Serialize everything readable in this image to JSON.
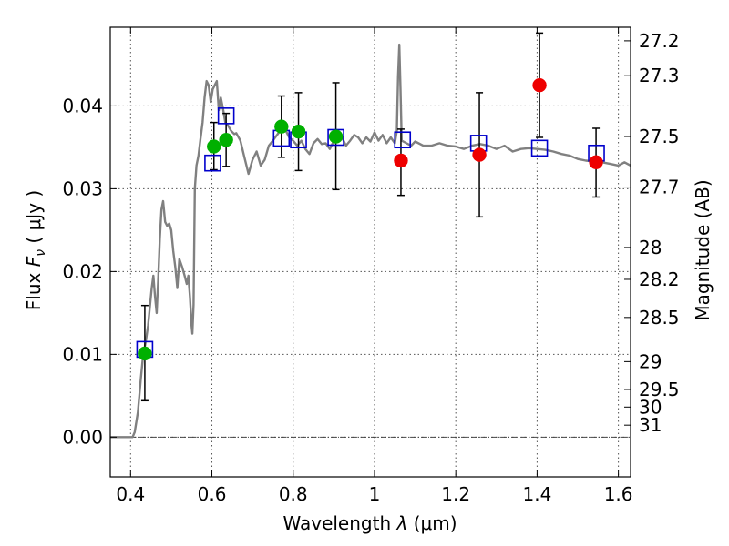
{
  "chart_data": {
    "type": "scatter",
    "xlabel_prefix": "Wavelength",
    "xlabel_symbol": "λ",
    "xlabel_unit": "(μm)",
    "ylabel_prefix": "Flux",
    "ylabel_symbol": "F",
    "ylabel_subscript": "ν",
    "ylabel_unit": "( μJy )",
    "ylabel_right": "Magnitude (AB)",
    "xlim": [
      0.35,
      1.63
    ],
    "ylim": [
      -0.0048,
      0.0495
    ],
    "grid": true,
    "x_ticks": [
      {
        "value": 0.4,
        "label": "0.4"
      },
      {
        "value": 0.6,
        "label": "0.6"
      },
      {
        "value": 0.8,
        "label": "0.8"
      },
      {
        "value": 1.0,
        "label": "1"
      },
      {
        "value": 1.2,
        "label": "1.2"
      },
      {
        "value": 1.4,
        "label": "1.4"
      },
      {
        "value": 1.6,
        "label": "1.6"
      }
    ],
    "y_ticks": [
      {
        "value": 0.0,
        "label": "0.00"
      },
      {
        "value": 0.01,
        "label": "0.01"
      },
      {
        "value": 0.02,
        "label": "0.02"
      },
      {
        "value": 0.03,
        "label": "0.03"
      },
      {
        "value": 0.04,
        "label": "0.04"
      }
    ],
    "magnitude_ticks": [
      {
        "mag": 27.2,
        "label": "27.2"
      },
      {
        "mag": 27.3,
        "label": "27.3"
      },
      {
        "mag": 27.5,
        "label": "27.5"
      },
      {
        "mag": 27.7,
        "label": "27.7"
      },
      {
        "mag": 28.0,
        "label": "28"
      },
      {
        "mag": 28.2,
        "label": "28.2"
      },
      {
        "mag": 28.5,
        "label": "28.5"
      },
      {
        "mag": 29.0,
        "label": "29"
      },
      {
        "mag": 29.5,
        "label": "29.5"
      },
      {
        "mag": 30.0,
        "label": "30"
      },
      {
        "mag": 31.0,
        "label": "31"
      }
    ],
    "colors": {
      "template": "#808080",
      "model": "#0000cc",
      "green": "#00b000",
      "red": "#ee0000",
      "errorbar": "#000000",
      "grid": "#555555"
    },
    "series": [
      {
        "kind": "line",
        "points": [
          [
            0.35,
            0.0
          ],
          [
            0.38,
            0.0
          ],
          [
            0.405,
            0.0
          ],
          [
            0.41,
            0.0006
          ],
          [
            0.418,
            0.003
          ],
          [
            0.425,
            0.007
          ],
          [
            0.43,
            0.0095
          ],
          [
            0.438,
            0.0118
          ],
          [
            0.443,
            0.0135
          ],
          [
            0.448,
            0.016
          ],
          [
            0.452,
            0.018
          ],
          [
            0.456,
            0.0195
          ],
          [
            0.46,
            0.017
          ],
          [
            0.464,
            0.015
          ],
          [
            0.468,
            0.019
          ],
          [
            0.472,
            0.024
          ],
          [
            0.476,
            0.0275
          ],
          [
            0.48,
            0.0285
          ],
          [
            0.485,
            0.026
          ],
          [
            0.49,
            0.0255
          ],
          [
            0.495,
            0.0258
          ],
          [
            0.5,
            0.025
          ],
          [
            0.505,
            0.0225
          ],
          [
            0.51,
            0.0205
          ],
          [
            0.515,
            0.018
          ],
          [
            0.52,
            0.0215
          ],
          [
            0.527,
            0.0205
          ],
          [
            0.533,
            0.0195
          ],
          [
            0.538,
            0.0185
          ],
          [
            0.542,
            0.0195
          ],
          [
            0.546,
            0.017
          ],
          [
            0.55,
            0.0135
          ],
          [
            0.552,
            0.0125
          ],
          [
            0.555,
            0.016
          ],
          [
            0.558,
            0.03
          ],
          [
            0.562,
            0.0328
          ],
          [
            0.567,
            0.034
          ],
          [
            0.572,
            0.036
          ],
          [
            0.577,
            0.038
          ],
          [
            0.582,
            0.041
          ],
          [
            0.587,
            0.043
          ],
          [
            0.592,
            0.0425
          ],
          [
            0.597,
            0.0405
          ],
          [
            0.602,
            0.042
          ],
          [
            0.607,
            0.0425
          ],
          [
            0.612,
            0.043
          ],
          [
            0.617,
            0.0395
          ],
          [
            0.622,
            0.041
          ],
          [
            0.628,
            0.0395
          ],
          [
            0.633,
            0.038
          ],
          [
            0.64,
            0.0376
          ],
          [
            0.647,
            0.037
          ],
          [
            0.655,
            0.0366
          ],
          [
            0.66,
            0.0367
          ],
          [
            0.67,
            0.0358
          ],
          [
            0.68,
            0.0338
          ],
          [
            0.69,
            0.0318
          ],
          [
            0.7,
            0.0335
          ],
          [
            0.71,
            0.0345
          ],
          [
            0.72,
            0.0328
          ],
          [
            0.73,
            0.0335
          ],
          [
            0.74,
            0.0352
          ],
          [
            0.75,
            0.0358
          ],
          [
            0.765,
            0.0368
          ],
          [
            0.78,
            0.0372
          ],
          [
            0.79,
            0.0362
          ],
          [
            0.8,
            0.0358
          ],
          [
            0.81,
            0.0352
          ],
          [
            0.82,
            0.0358
          ],
          [
            0.83,
            0.0348
          ],
          [
            0.84,
            0.0342
          ],
          [
            0.85,
            0.0355
          ],
          [
            0.86,
            0.036
          ],
          [
            0.87,
            0.0354
          ],
          [
            0.88,
            0.0355
          ],
          [
            0.89,
            0.0348
          ],
          [
            0.9,
            0.0358
          ],
          [
            0.91,
            0.0366
          ],
          [
            0.92,
            0.0362
          ],
          [
            0.93,
            0.0352
          ],
          [
            0.94,
            0.0358
          ],
          [
            0.95,
            0.0365
          ],
          [
            0.96,
            0.0362
          ],
          [
            0.97,
            0.0355
          ],
          [
            0.98,
            0.0362
          ],
          [
            0.99,
            0.0357
          ],
          [
            1.0,
            0.0368
          ],
          [
            1.01,
            0.0358
          ],
          [
            1.02,
            0.0365
          ],
          [
            1.03,
            0.0355
          ],
          [
            1.04,
            0.0362
          ],
          [
            1.05,
            0.0355
          ],
          [
            1.055,
            0.037
          ],
          [
            1.058,
            0.0435
          ],
          [
            1.061,
            0.0474
          ],
          [
            1.064,
            0.042
          ],
          [
            1.067,
            0.0358
          ],
          [
            1.075,
            0.0356
          ],
          [
            1.09,
            0.0352
          ],
          [
            1.1,
            0.0357
          ],
          [
            1.12,
            0.0352
          ],
          [
            1.14,
            0.0352
          ],
          [
            1.16,
            0.0355
          ],
          [
            1.18,
            0.0352
          ],
          [
            1.2,
            0.0351
          ],
          [
            1.22,
            0.0348
          ],
          [
            1.24,
            0.0352
          ],
          [
            1.26,
            0.0354
          ],
          [
            1.28,
            0.0352
          ],
          [
            1.3,
            0.0348
          ],
          [
            1.32,
            0.0352
          ],
          [
            1.34,
            0.0345
          ],
          [
            1.36,
            0.0348
          ],
          [
            1.38,
            0.0349
          ],
          [
            1.4,
            0.0348
          ],
          [
            1.42,
            0.0347
          ],
          [
            1.44,
            0.0345
          ],
          [
            1.46,
            0.0342
          ],
          [
            1.48,
            0.034
          ],
          [
            1.5,
            0.0336
          ],
          [
            1.52,
            0.0334
          ],
          [
            1.54,
            0.0333
          ],
          [
            1.56,
            0.0332
          ],
          [
            1.58,
            0.033
          ],
          [
            1.6,
            0.0328
          ],
          [
            1.615,
            0.0332
          ],
          [
            1.63,
            0.0328
          ]
        ]
      },
      {
        "kind": "squares",
        "points": [
          [
            0.435,
            0.0106
          ],
          [
            0.602,
            0.0331
          ],
          [
            0.635,
            0.0388
          ],
          [
            0.771,
            0.0361
          ],
          [
            0.813,
            0.0359
          ],
          [
            0.905,
            0.0362
          ],
          [
            1.069,
            0.0359
          ],
          [
            1.256,
            0.0355
          ],
          [
            1.406,
            0.0349
          ],
          [
            1.546,
            0.0343
          ]
        ]
      },
      {
        "kind": "points_green",
        "points": [
          {
            "x": 0.435,
            "y": 0.0101,
            "lo": 0.0044,
            "hi": 0.0159
          },
          {
            "x": 0.605,
            "y": 0.0351,
            "lo": 0.0323,
            "hi": 0.038
          },
          {
            "x": 0.635,
            "y": 0.0359,
            "lo": 0.0327,
            "hi": 0.0391
          },
          {
            "x": 0.771,
            "y": 0.0375,
            "lo": 0.0338,
            "hi": 0.0412
          },
          {
            "x": 0.813,
            "y": 0.0369,
            "lo": 0.0322,
            "hi": 0.0416
          },
          {
            "x": 0.905,
            "y": 0.0363,
            "lo": 0.0299,
            "hi": 0.0428
          }
        ]
      },
      {
        "kind": "points_red",
        "points": [
          {
            "x": 1.065,
            "y": 0.0334,
            "lo": 0.0292,
            "hi": 0.0372
          },
          {
            "x": 1.258,
            "y": 0.0341,
            "lo": 0.0266,
            "hi": 0.0416
          },
          {
            "x": 1.406,
            "y": 0.0425,
            "lo": 0.0362,
            "hi": 0.0488
          },
          {
            "x": 1.545,
            "y": 0.0332,
            "lo": 0.029,
            "hi": 0.0373
          }
        ]
      }
    ]
  }
}
